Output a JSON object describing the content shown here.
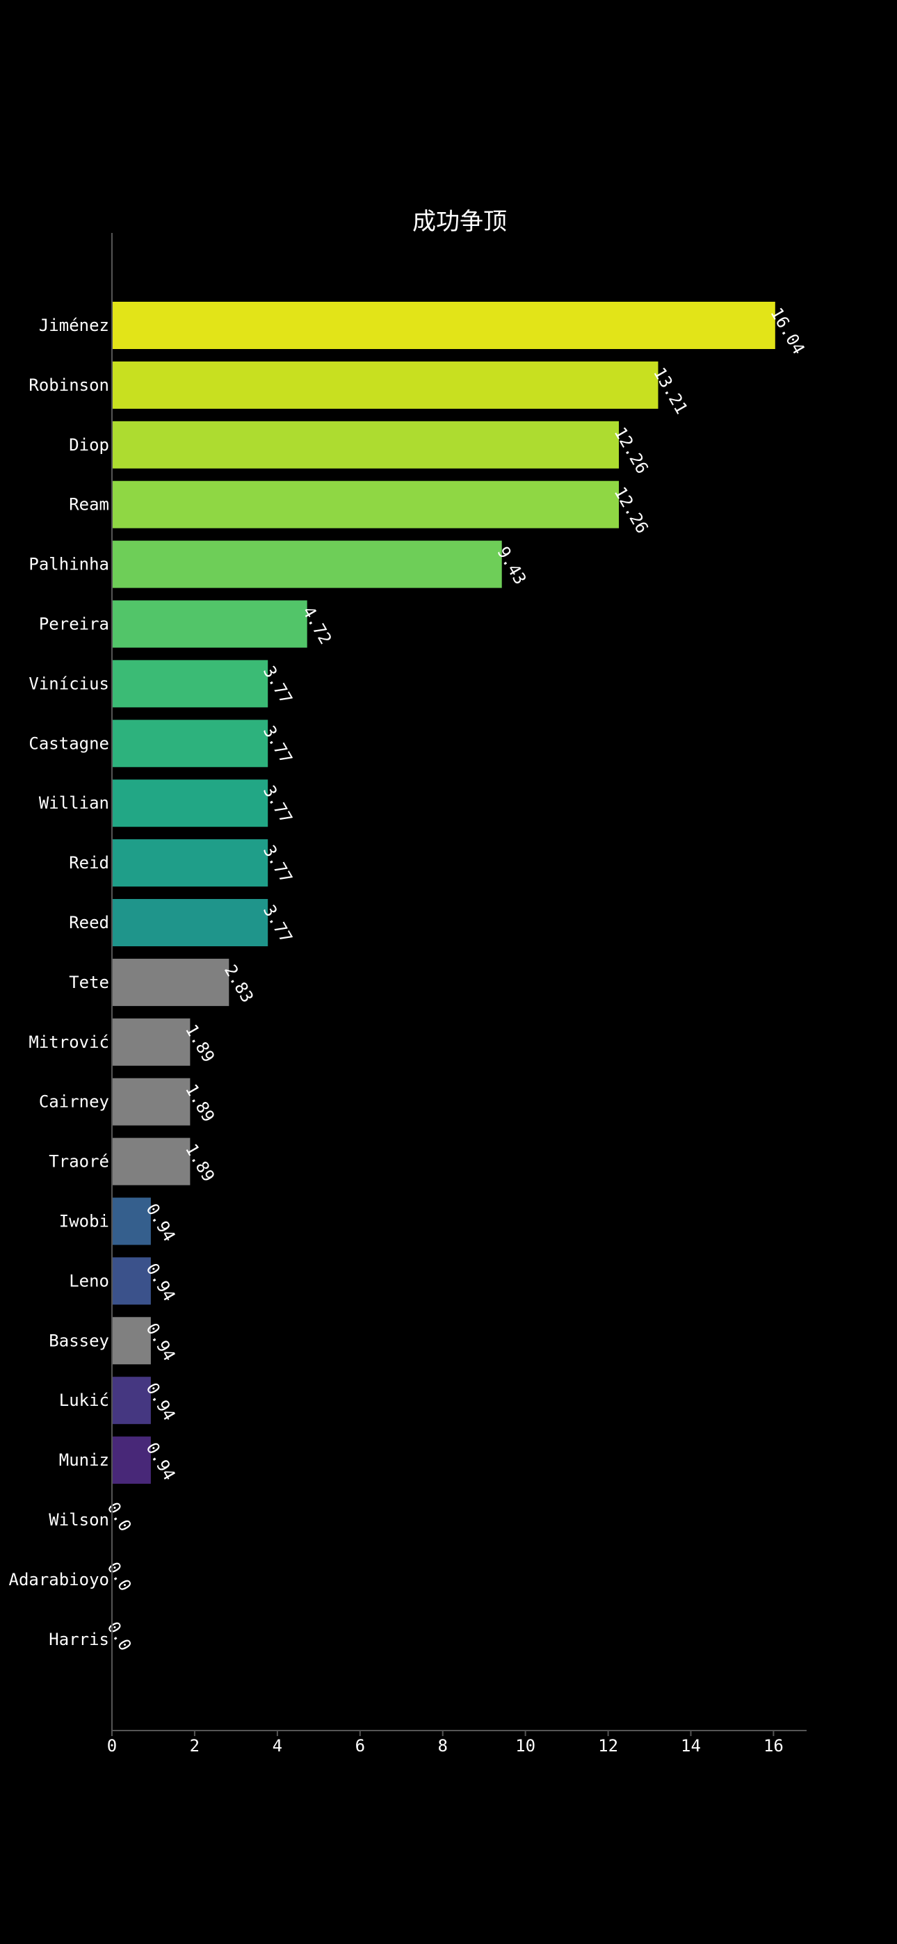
{
  "chart_data": {
    "type": "bar",
    "orientation": "horizontal",
    "title": "成功争顶",
    "xlabel": "",
    "ylabel": "",
    "xlim": [
      0,
      16.8
    ],
    "x_ticks": [
      0,
      2,
      4,
      6,
      8,
      10,
      12,
      14,
      16
    ],
    "grid": false,
    "legend": "none",
    "value_label_rotation_deg": 60,
    "categories": [
      "Jiménez",
      "Robinson",
      "Diop",
      "Ream",
      "Palhinha",
      "Pereira",
      "Vinícius",
      "Castagne",
      "Willian",
      "Reid",
      "Reed",
      "Tete",
      "Mitrović",
      "Cairney",
      "Traoré",
      "Iwobi",
      "Leno",
      "Bassey",
      "Lukić",
      "Muniz",
      "Wilson",
      "Adarabioyo",
      "Harris"
    ],
    "values": [
      16.04,
      13.21,
      12.26,
      12.26,
      9.43,
      4.72,
      3.77,
      3.77,
      3.77,
      3.77,
      3.77,
      2.83,
      1.89,
      1.89,
      1.89,
      0.94,
      0.94,
      0.94,
      0.94,
      0.94,
      0.0,
      0.0,
      0.0
    ],
    "value_labels": [
      "16.04",
      "13.21",
      "12.26",
      "12.26",
      "9.43",
      "4.72",
      "3.77",
      "3.77",
      "3.77",
      "3.77",
      "3.77",
      "2.83",
      "1.89",
      "1.89",
      "1.89",
      "0.94",
      "0.94",
      "0.94",
      "0.94",
      "0.94",
      "0.0",
      "0.0",
      "0.0"
    ],
    "colors": [
      "#e2e418",
      "#c8e020",
      "#addc30",
      "#8fd744",
      "#6ece58",
      "#52c569",
      "#3bbb75",
      "#2db27d",
      "#22a785",
      "#1f9e89",
      "#1f958b",
      "#808080",
      "#808080",
      "#808080",
      "#808080",
      "#355f8d",
      "#3b528b",
      "#808080",
      "#453781",
      "#482878",
      "#808080",
      "#808080",
      "#808080"
    ],
    "background": "#000000",
    "text_color": "#ffffff",
    "axis_color": "#555555"
  }
}
